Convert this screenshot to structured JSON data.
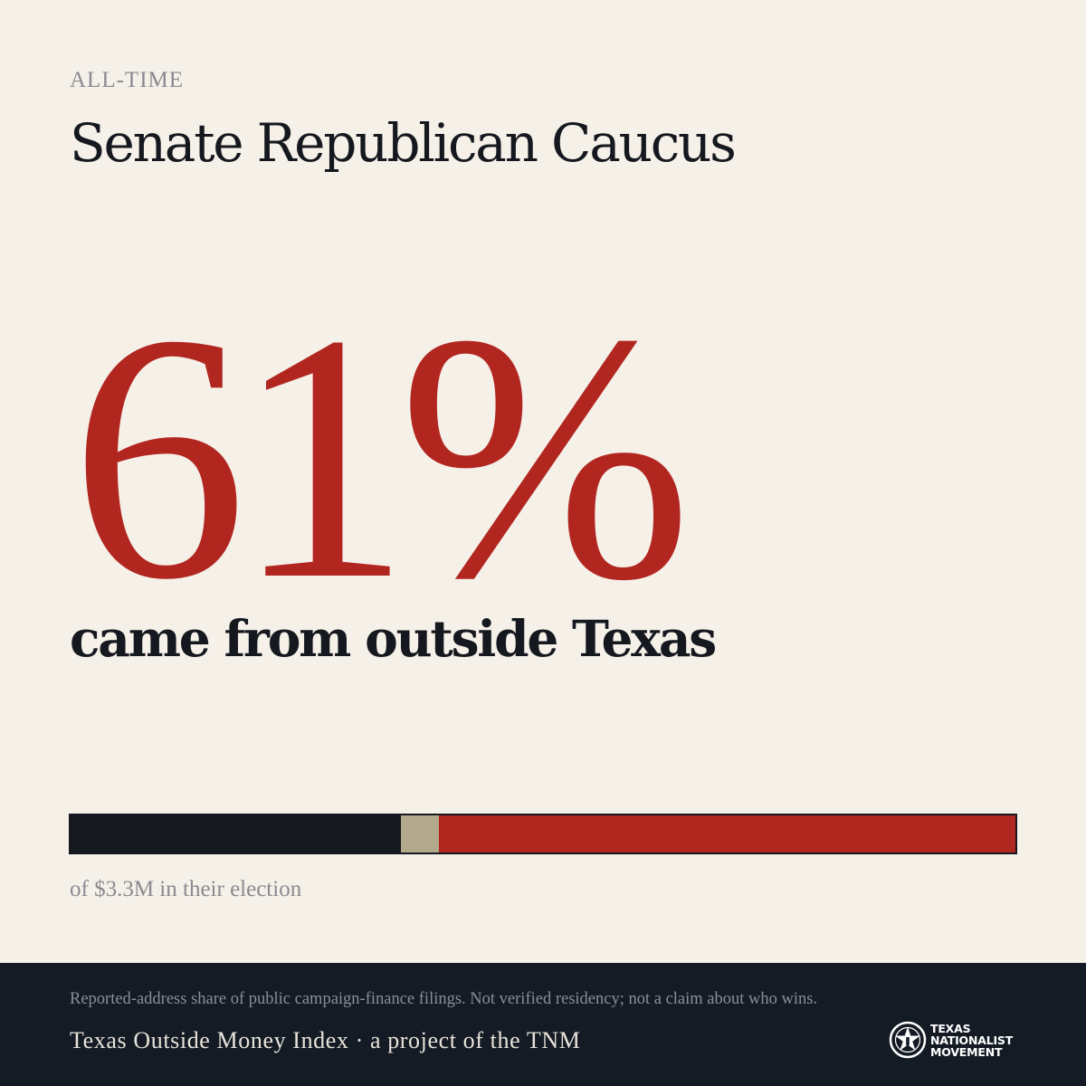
{
  "eyebrow": "ALL-TIME",
  "title": "Senate Republican Caucus",
  "stat": {
    "value": "61%",
    "headline": "came from outside Texas"
  },
  "breakdown_bar": {
    "segments": [
      {
        "share": 0.35,
        "color": "#15181e"
      },
      {
        "share": 0.04,
        "color": "#b3a98c"
      },
      {
        "share": 0.61,
        "color": "#b22620"
      }
    ]
  },
  "caption": "of $3.3M in their election",
  "footer": {
    "disclaimer": "Reported-address share of public campaign-finance filings. Not verified residency; not a claim about who wins.",
    "project": "Texas Outside Money Index · a project of the TNM",
    "logo": {
      "icon": "tnm-star-seal-icon",
      "lines": [
        "TEXAS",
        "NATIONALIST",
        "MOVEMENT"
      ]
    }
  },
  "colors": {
    "background": "#f5f0e8",
    "accent_red": "#b22620",
    "ink": "#15181e",
    "footer_bg": "#141b25"
  }
}
